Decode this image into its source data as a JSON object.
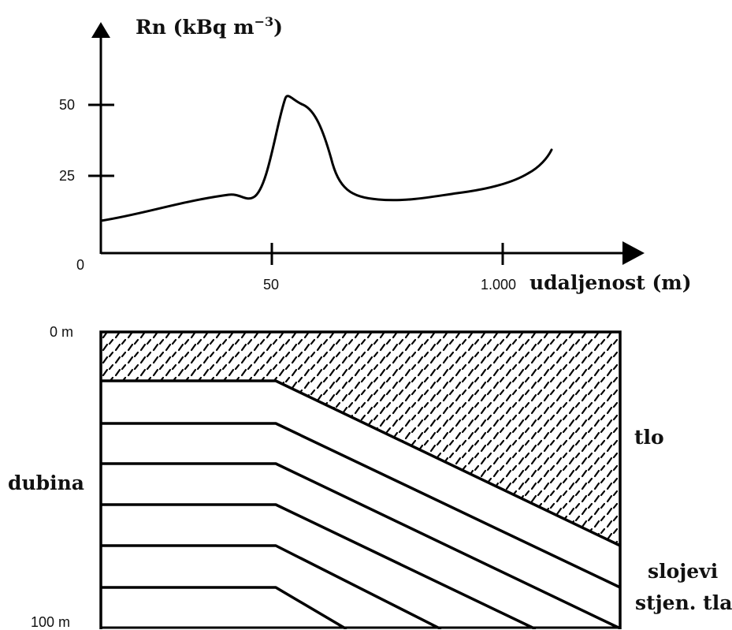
{
  "chart": {
    "y_axis_title": "Rn (kBq m",
    "y_axis_title_exp": "−3",
    "y_axis_title_close": ")",
    "x_axis_title": "udaljenost (m)",
    "y_ticks": [
      "50",
      "25",
      "0"
    ],
    "x_ticks": [
      "50",
      "1.000"
    ]
  },
  "chart_data": {
    "type": "line",
    "title": "",
    "xlabel": "udaljenost (m)",
    "ylabel": "Rn (kBq m−3)",
    "x_tick_labels": [
      "50",
      "1.000"
    ],
    "y_tick_labels": [
      "0",
      "25",
      "50"
    ],
    "ylim": [
      0,
      70
    ],
    "grid": false,
    "series": [
      {
        "x_position_fraction": [
          0.0,
          0.15,
          0.24,
          0.27,
          0.3,
          0.325,
          0.34,
          0.37,
          0.4,
          0.47,
          0.56,
          0.72,
          0.78,
          0.83
        ],
        "values": [
          11.5,
          14.5,
          19.5,
          19.0,
          22.0,
          42.0,
          55.0,
          47.0,
          24.0,
          19.0,
          19.0,
          24.0,
          28.0,
          36.0
        ]
      }
    ]
  },
  "cross_section": {
    "depth_top": "0 m",
    "depth_bottom": "100 m",
    "depth_label": "dubina",
    "soil_label": "tlo",
    "rock_label_line1": "slojevi",
    "rock_label_line2": "stjen. tla"
  }
}
